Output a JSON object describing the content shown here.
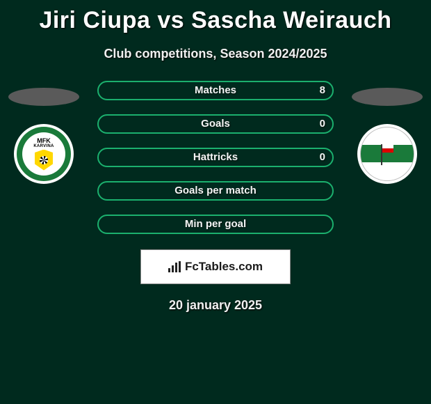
{
  "title": "Jiri Ciupa vs Sascha Weirauch",
  "subtitle": "Club competitions, Season 2024/2025",
  "date": "20 january 2025",
  "site": "FcTables.com",
  "colors": {
    "background": "#002a1e",
    "bar_border": "#1bb06e",
    "bar_fill": "#1bb06e",
    "oval": "#5a5a5a",
    "text": "#ffffff"
  },
  "bars": [
    {
      "label": "Matches",
      "right_value": "8",
      "fill_pct": 0
    },
    {
      "label": "Goals",
      "right_value": "0",
      "fill_pct": 0
    },
    {
      "label": "Hattricks",
      "right_value": "0",
      "fill_pct": 0
    },
    {
      "label": "Goals per match",
      "right_value": "",
      "fill_pct": 0
    },
    {
      "label": "Min per goal",
      "right_value": "",
      "fill_pct": 0
    }
  ],
  "left_logo": {
    "name": "mfk-karvina-logo",
    "text_top": "MFK",
    "text_sub": "KARVINA"
  },
  "right_logo": {
    "name": "lechia-gdansk-logo"
  }
}
